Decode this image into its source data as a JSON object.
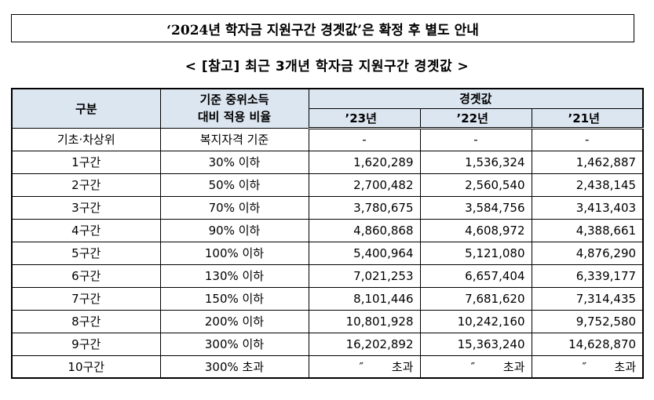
{
  "header": {
    "title": "‘2024년 학자금 지원구간 경곗값’은 확정 후 별도 안내"
  },
  "table": {
    "subtitle": "< [참고] 최근 3개년 학자금 지원구간 경곗값 >",
    "columns": {
      "category": "구분",
      "ratio": "기준 중위소득\n대비 적용 비율",
      "group": "경곗값",
      "years": [
        "’23년",
        "’22년",
        "’21년"
      ]
    },
    "rows": [
      [
        "기초·차상위",
        "복지자격 기준",
        "-",
        "-",
        "-"
      ],
      [
        "1구간",
        "30% 이하",
        "1,620,289",
        "1,536,324",
        "1,462,887"
      ],
      [
        "2구간",
        "50% 이하",
        "2,700,482",
        "2,560,540",
        "2,438,145"
      ],
      [
        "3구간",
        "70% 이하",
        "3,780,675",
        "3,584,756",
        "3,413,403"
      ],
      [
        "4구간",
        "90% 이하",
        "4,860,868",
        "4,608,972",
        "4,388,661"
      ],
      [
        "5구간",
        "100% 이하",
        "5,400,964",
        "5,121,080",
        "4,876,290"
      ],
      [
        "6구간",
        "130% 이하",
        "7,021,253",
        "6,657,404",
        "6,339,177"
      ],
      [
        "7구간",
        "150% 이하",
        "8,101,446",
        "7,681,620",
        "7,314,435"
      ],
      [
        "8구간",
        "200% 이하",
        "10,801,928",
        "10,242,160",
        "9,752,580"
      ],
      [
        "9구간",
        "300% 이하",
        "16,202,892",
        "15,363,240",
        "14,628,870"
      ],
      [
        "10구간",
        "300% 초과",
        "″ 초과",
        "″ 초과",
        "″ 초과"
      ]
    ]
  }
}
